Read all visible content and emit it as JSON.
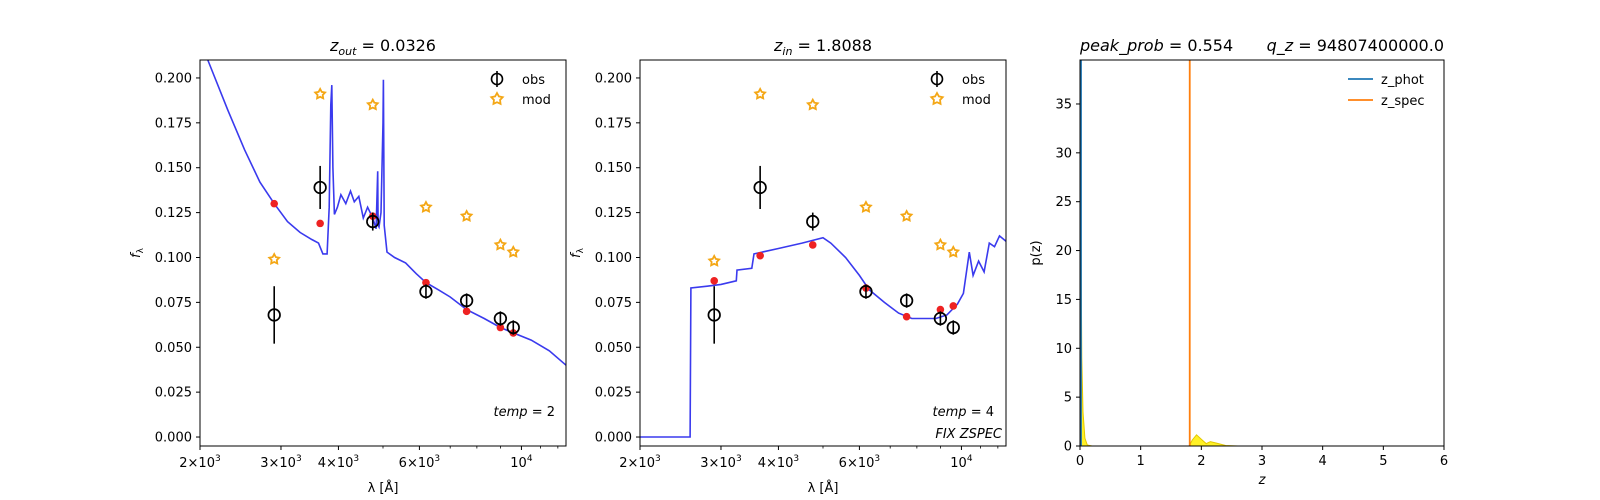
{
  "colors": {
    "model_curve": "#3a3aee",
    "model_points": "#ee2222",
    "obs_markers": "#000000",
    "mod_stars": "#f4a716",
    "z_phot": "#1f77b4",
    "z_spec": "#ff7f0e",
    "pdf_fill": "#ffee00"
  },
  "chart_data": [
    {
      "type": "line",
      "title": "z_out = 0.0326",
      "title_parts": {
        "var": "z",
        "sub": "out",
        "eq": " = 0.0326"
      },
      "xlabel": "λ [Å]",
      "ylabel": "f_λ",
      "ylabel_parts": {
        "var": "f",
        "sub": "λ"
      },
      "x_scale": "log",
      "xlim": [
        2000,
        12500
      ],
      "ylim": [
        -0.005,
        0.21
      ],
      "x_ticks": [
        {
          "value": 2000,
          "base": "2×10",
          "exp": "3"
        },
        {
          "value": 3000,
          "base": "3×10",
          "exp": "3"
        },
        {
          "value": 4000,
          "base": "4×10",
          "exp": "3"
        },
        {
          "value": 6000,
          "base": "6×10",
          "exp": "3"
        },
        {
          "value": 10000,
          "base": "10",
          "exp": "4"
        }
      ],
      "y_ticks": [
        "0.000",
        "0.025",
        "0.050",
        "0.075",
        "0.100",
        "0.125",
        "0.150",
        "0.175",
        "0.200"
      ],
      "legend": [
        {
          "label": "obs",
          "marker": "circle"
        },
        {
          "label": "mod",
          "marker": "star"
        }
      ],
      "annotations": [
        {
          "text": "temp = 2",
          "var": "temp",
          "eq": " = 2"
        }
      ],
      "observed": [
        {
          "x": 2900,
          "y": 0.068,
          "err": 0.016
        },
        {
          "x": 3650,
          "y": 0.139,
          "err": 0.012
        },
        {
          "x": 4750,
          "y": 0.12,
          "err": 0.005
        },
        {
          "x": 6200,
          "y": 0.081,
          "err": 0.004
        },
        {
          "x": 7600,
          "y": 0.076,
          "err": 0.004
        },
        {
          "x": 9000,
          "y": 0.066,
          "err": 0.004
        },
        {
          "x": 9600,
          "y": 0.061,
          "err": 0.004
        }
      ],
      "model_stars": [
        {
          "x": 2900,
          "y": 0.099
        },
        {
          "x": 3650,
          "y": 0.191
        },
        {
          "x": 4750,
          "y": 0.185
        },
        {
          "x": 6200,
          "y": 0.128
        },
        {
          "x": 7600,
          "y": 0.123
        },
        {
          "x": 9000,
          "y": 0.107
        },
        {
          "x": 9600,
          "y": 0.103
        }
      ],
      "model_points": [
        {
          "x": 2900,
          "y": 0.13
        },
        {
          "x": 3650,
          "y": 0.119
        },
        {
          "x": 4750,
          "y": 0.123
        },
        {
          "x": 6200,
          "y": 0.086
        },
        {
          "x": 7600,
          "y": 0.07
        },
        {
          "x": 9000,
          "y": 0.061
        },
        {
          "x": 9600,
          "y": 0.058
        }
      ],
      "sed_curve": [
        [
          2080,
          0.212
        ],
        [
          2300,
          0.182
        ],
        [
          2500,
          0.16
        ],
        [
          2700,
          0.142
        ],
        [
          2900,
          0.13
        ],
        [
          3100,
          0.12
        ],
        [
          3300,
          0.114
        ],
        [
          3500,
          0.11
        ],
        [
          3620,
          0.108
        ],
        [
          3700,
          0.102
        ],
        [
          3780,
          0.102
        ],
        [
          3820,
          0.128
        ],
        [
          3850,
          0.185
        ],
        [
          3870,
          0.196
        ],
        [
          3890,
          0.15
        ],
        [
          3920,
          0.124
        ],
        [
          3980,
          0.128
        ],
        [
          4050,
          0.135
        ],
        [
          4150,
          0.13
        ],
        [
          4250,
          0.137
        ],
        [
          4330,
          0.131
        ],
        [
          4430,
          0.134
        ],
        [
          4530,
          0.122
        ],
        [
          4630,
          0.128
        ],
        [
          4750,
          0.122
        ],
        [
          4830,
          0.116
        ],
        [
          4870,
          0.148
        ],
        [
          4880,
          0.118
        ],
        [
          4900,
          0.117
        ],
        [
          4950,
          0.125
        ],
        [
          5000,
          0.175
        ],
        [
          5010,
          0.199
        ],
        [
          5030,
          0.118
        ],
        [
          5100,
          0.103
        ],
        [
          5300,
          0.1
        ],
        [
          5600,
          0.097
        ],
        [
          5900,
          0.091
        ],
        [
          6200,
          0.086
        ],
        [
          6600,
          0.082
        ],
        [
          7000,
          0.078
        ],
        [
          7600,
          0.071
        ],
        [
          8300,
          0.066
        ],
        [
          9000,
          0.061
        ],
        [
          9600,
          0.058
        ],
        [
          10500,
          0.054
        ],
        [
          11500,
          0.048
        ],
        [
          12500,
          0.04
        ]
      ]
    },
    {
      "type": "line",
      "title": "z_in = 1.8088",
      "title_parts": {
        "var": "z",
        "sub": "in",
        "eq": " = 1.8088"
      },
      "xlabel": "λ [Å]",
      "ylabel": "f_λ",
      "ylabel_parts": {
        "var": "f",
        "sub": "λ"
      },
      "x_scale": "log",
      "xlim": [
        2000,
        12500
      ],
      "ylim": [
        -0.005,
        0.21
      ],
      "x_ticks": [
        {
          "value": 2000,
          "base": "2×10",
          "exp": "3"
        },
        {
          "value": 3000,
          "base": "3×10",
          "exp": "3"
        },
        {
          "value": 4000,
          "base": "4×10",
          "exp": "3"
        },
        {
          "value": 6000,
          "base": "6×10",
          "exp": "3"
        },
        {
          "value": 10000,
          "base": "10",
          "exp": "4"
        }
      ],
      "y_ticks": [
        "0.000",
        "0.025",
        "0.050",
        "0.075",
        "0.100",
        "0.125",
        "0.150",
        "0.175",
        "0.200"
      ],
      "legend": [
        {
          "label": "obs",
          "marker": "circle"
        },
        {
          "label": "mod",
          "marker": "star"
        }
      ],
      "annotations": [
        {
          "text": "temp = 4",
          "var": "temp",
          "eq": " = 4"
        },
        {
          "text": "FIX ZSPEC",
          "var": "FIX ZSPEC",
          "eq": ""
        }
      ],
      "observed": [
        {
          "x": 2900,
          "y": 0.068,
          "err": 0.016
        },
        {
          "x": 3650,
          "y": 0.139,
          "err": 0.012
        },
        {
          "x": 4750,
          "y": 0.12,
          "err": 0.005
        },
        {
          "x": 6200,
          "y": 0.081,
          "err": 0.004
        },
        {
          "x": 7600,
          "y": 0.076,
          "err": 0.004
        },
        {
          "x": 9000,
          "y": 0.066,
          "err": 0.004
        },
        {
          "x": 9600,
          "y": 0.061,
          "err": 0.004
        }
      ],
      "model_stars": [
        {
          "x": 2900,
          "y": 0.098
        },
        {
          "x": 3650,
          "y": 0.191
        },
        {
          "x": 4750,
          "y": 0.185
        },
        {
          "x": 6200,
          "y": 0.128
        },
        {
          "x": 7600,
          "y": 0.123
        },
        {
          "x": 9000,
          "y": 0.107
        },
        {
          "x": 9600,
          "y": 0.103
        }
      ],
      "model_points": [
        {
          "x": 2900,
          "y": 0.087
        },
        {
          "x": 3650,
          "y": 0.101
        },
        {
          "x": 4750,
          "y": 0.107
        },
        {
          "x": 6200,
          "y": 0.083
        },
        {
          "x": 7600,
          "y": 0.067
        },
        {
          "x": 9000,
          "y": 0.071
        },
        {
          "x": 9600,
          "y": 0.073
        }
      ],
      "sed_curve": [
        [
          2000,
          0.0
        ],
        [
          2570,
          0.0
        ],
        [
          2580,
          0.083
        ],
        [
          2800,
          0.084
        ],
        [
          3000,
          0.085
        ],
        [
          3240,
          0.087
        ],
        [
          3250,
          0.093
        ],
        [
          3500,
          0.094
        ],
        [
          3540,
          0.102
        ],
        [
          4000,
          0.105
        ],
        [
          4500,
          0.108
        ],
        [
          5000,
          0.111
        ],
        [
          5200,
          0.108
        ],
        [
          5600,
          0.1
        ],
        [
          6000,
          0.09
        ],
        [
          6300,
          0.082
        ],
        [
          6800,
          0.075
        ],
        [
          7300,
          0.069
        ],
        [
          7800,
          0.066
        ],
        [
          8300,
          0.066
        ],
        [
          8800,
          0.066
        ],
        [
          9300,
          0.068
        ],
        [
          9800,
          0.074
        ],
        [
          10100,
          0.08
        ],
        [
          10400,
          0.103
        ],
        [
          10600,
          0.09
        ],
        [
          10900,
          0.098
        ],
        [
          11200,
          0.092
        ],
        [
          11500,
          0.108
        ],
        [
          11800,
          0.106
        ],
        [
          12100,
          0.112
        ],
        [
          12500,
          0.109
        ]
      ]
    },
    {
      "type": "line",
      "title": "peak_prob = 0.554",
      "title_parts": {
        "var": "peak_prob",
        "eq": " = 0.554"
      },
      "title_right": "q_z = 94807400000.0",
      "title_right_parts": {
        "var": "q_z",
        "eq": " = 94807400000.0"
      },
      "xlabel": "z",
      "ylabel": "p(z)",
      "xlim": [
        0,
        6
      ],
      "ylim": [
        0,
        39.5
      ],
      "x_ticks": [
        "0",
        "1",
        "2",
        "3",
        "4",
        "5",
        "6"
      ],
      "y_ticks": [
        "0",
        "5",
        "10",
        "15",
        "20",
        "25",
        "30",
        "35"
      ],
      "legend": [
        {
          "label": "z_phot"
        },
        {
          "label": "z_spec"
        }
      ],
      "z_phot": 0.0,
      "z_spec": 1.8088,
      "pdf": [
        [
          0.0,
          39.5
        ],
        [
          0.01,
          30.0
        ],
        [
          0.02,
          18.0
        ],
        [
          0.03,
          9.0
        ],
        [
          0.05,
          3.5
        ],
        [
          0.08,
          0.8
        ],
        [
          0.12,
          0.1
        ],
        [
          0.2,
          0.0
        ],
        [
          1.8,
          0.0
        ],
        [
          1.85,
          0.6
        ],
        [
          1.92,
          1.15
        ],
        [
          2.0,
          0.7
        ],
        [
          2.08,
          0.25
        ],
        [
          2.15,
          0.45
        ],
        [
          2.25,
          0.3
        ],
        [
          2.4,
          0.05
        ],
        [
          2.6,
          0.0
        ],
        [
          5.0,
          0.0
        ]
      ]
    }
  ]
}
